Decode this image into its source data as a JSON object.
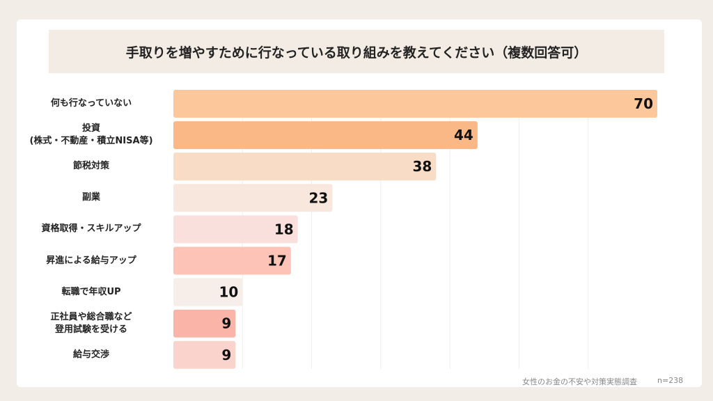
{
  "chart_data": {
    "type": "bar",
    "orientation": "horizontal",
    "title": "手取りを増やすために行なっている取り組みを教えてください（複数回答可）",
    "categories": [
      "何も行なっていない",
      "投資\n(株式・不動産・積立NISA等)",
      "節税対策",
      "副業",
      "資格取得・スキルアップ",
      "昇進による給与アップ",
      "転職で年収UP",
      "正社員や総合職など\n登用試験を受ける",
      "給与交渉"
    ],
    "values": [
      70,
      44,
      38,
      23,
      18,
      17,
      10,
      9,
      9
    ],
    "colors": [
      "#fcc79a",
      "#fbb887",
      "#f8dcc5",
      "#f8e7dc",
      "#f9e0dc",
      "#fcc3b6",
      "#f7ede9",
      "#fbb5a8",
      "#fad3cc"
    ],
    "xlim": [
      0,
      70
    ],
    "grid": true,
    "legend": "none"
  },
  "footer": {
    "source": "女性のお金の不安や対策実態調査",
    "n": "n=238"
  }
}
